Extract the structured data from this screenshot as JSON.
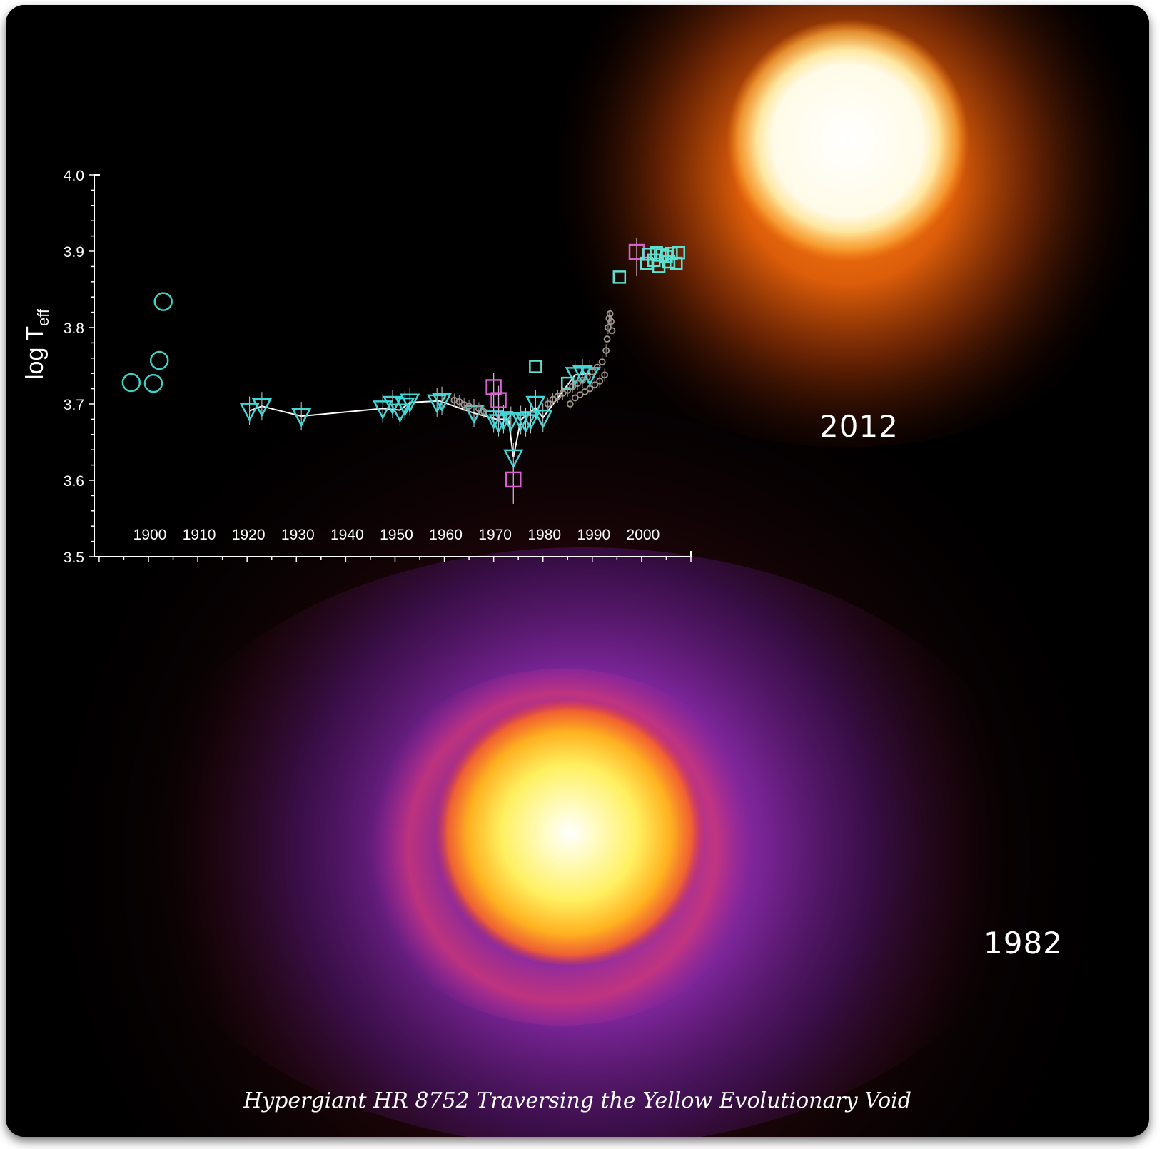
{
  "caption": "Hypergiant HR 8752 Traversing the Yellow Evolutionary Void",
  "image_labels": {
    "upper": "2012",
    "lower": "1982"
  },
  "colors": {
    "axis": "#ffffff",
    "circles": "#3fd0c8",
    "triangles": "#3fd6d6",
    "squares_pink": "#d860d0",
    "squares_cyan": "#5fe0d0",
    "small_points": "#a09890",
    "trend_line": "#ffffff"
  },
  "chart_data": {
    "type": "scatter",
    "ylabel": "log T",
    "ylabel_sub": "eff",
    "xlim": [
      1889,
      2010
    ],
    "ylim": [
      3.5,
      4.0
    ],
    "x_ticks": [
      1900,
      1910,
      1920,
      1930,
      1940,
      1950,
      1960,
      1970,
      1980,
      1990,
      2000
    ],
    "y_ticks": [
      3.5,
      3.6,
      3.7,
      3.8,
      3.9,
      4.0
    ],
    "y_tick_labels": [
      "3.5",
      "3.6",
      "3.7",
      "3.8",
      "3.9",
      "4.0"
    ],
    "series": [
      {
        "marker": "circle",
        "points": [
          [
            1896.5,
            3.728
          ],
          [
            1901,
            3.727
          ],
          [
            1902.2,
            3.757
          ],
          [
            1903,
            3.834
          ]
        ]
      },
      {
        "marker": "triangle-down",
        "points": [
          [
            1920.5,
            3.691
          ],
          [
            1923,
            3.697
          ],
          [
            1931,
            3.684
          ],
          [
            1947.5,
            3.694
          ],
          [
            1949.5,
            3.7
          ],
          [
            1951,
            3.69
          ],
          [
            1952,
            3.698
          ],
          [
            1953,
            3.703
          ],
          [
            1958.5,
            3.702
          ],
          [
            1959.5,
            3.704
          ],
          [
            1966,
            3.688
          ],
          [
            1970,
            3.681
          ],
          [
            1971,
            3.676
          ],
          [
            1972,
            3.68
          ],
          [
            1973.5,
            3.678
          ],
          [
            1974,
            3.63
          ],
          [
            1975.5,
            3.679
          ],
          [
            1976.5,
            3.676
          ],
          [
            1977.5,
            3.68
          ],
          [
            1978.5,
            3.7
          ],
          [
            1980,
            3.682
          ],
          [
            1986.5,
            3.738
          ],
          [
            1988,
            3.74
          ],
          [
            1989.5,
            3.738
          ]
        ],
        "line": [
          [
            1920.5,
            3.691
          ],
          [
            1923,
            3.697
          ],
          [
            1931,
            3.684
          ],
          [
            1947.5,
            3.694
          ],
          [
            1951,
            3.692
          ],
          [
            1953,
            3.702
          ],
          [
            1959,
            3.704
          ],
          [
            1966,
            3.688
          ],
          [
            1970.5,
            3.68
          ],
          [
            1973,
            3.68
          ],
          [
            1974,
            3.63
          ],
          [
            1975.5,
            3.679
          ],
          [
            1978.5,
            3.695
          ],
          [
            1980,
            3.682
          ],
          [
            1986.5,
            3.738
          ],
          [
            1989.5,
            3.74
          ]
        ]
      },
      {
        "marker": "square-pink",
        "points": [
          [
            1970,
            3.722
          ],
          [
            1971,
            3.705
          ],
          [
            1974,
            3.601
          ],
          [
            1999,
            3.899
          ]
        ]
      },
      {
        "marker": "square-cyan",
        "points": [
          [
            1978.5,
            3.749
          ],
          [
            1985,
            3.727
          ],
          [
            1995.5,
            3.866
          ],
          [
            2001,
            3.884
          ],
          [
            2001.5,
            3.896
          ],
          [
            2002.5,
            3.888
          ],
          [
            2003,
            3.898
          ],
          [
            2003.5,
            3.88
          ],
          [
            2004.2,
            3.895
          ],
          [
            2005,
            3.893
          ],
          [
            2005.5,
            3.886
          ],
          [
            2006,
            3.897
          ],
          [
            2007,
            3.884
          ],
          [
            2007.5,
            3.898
          ]
        ]
      },
      {
        "marker": "small-circle",
        "points": [
          [
            1962,
            3.705
          ],
          [
            1963,
            3.703
          ],
          [
            1964,
            3.699
          ],
          [
            1965,
            3.697
          ],
          [
            1967,
            3.694
          ],
          [
            1968,
            3.69
          ],
          [
            1981,
            3.7
          ],
          [
            1982,
            3.706
          ],
          [
            1983,
            3.71
          ],
          [
            1984,
            3.714
          ],
          [
            1985,
            3.718
          ],
          [
            1985.5,
            3.7
          ],
          [
            1986,
            3.723
          ],
          [
            1986.5,
            3.708
          ],
          [
            1987,
            3.727
          ],
          [
            1987.5,
            3.712
          ],
          [
            1988,
            3.731
          ],
          [
            1988.5,
            3.716
          ],
          [
            1989,
            3.735
          ],
          [
            1989.5,
            3.72
          ],
          [
            1990,
            3.742
          ],
          [
            1990.5,
            3.725
          ],
          [
            1991,
            3.748
          ],
          [
            1991.5,
            3.73
          ],
          [
            1992,
            3.755
          ],
          [
            1992.5,
            3.738
          ],
          [
            1992.8,
            3.77
          ],
          [
            1993,
            3.785
          ],
          [
            1993.2,
            3.8
          ],
          [
            1993.4,
            3.812
          ],
          [
            1993.6,
            3.818
          ],
          [
            1993.8,
            3.808
          ],
          [
            1994,
            3.796
          ]
        ]
      }
    ]
  }
}
